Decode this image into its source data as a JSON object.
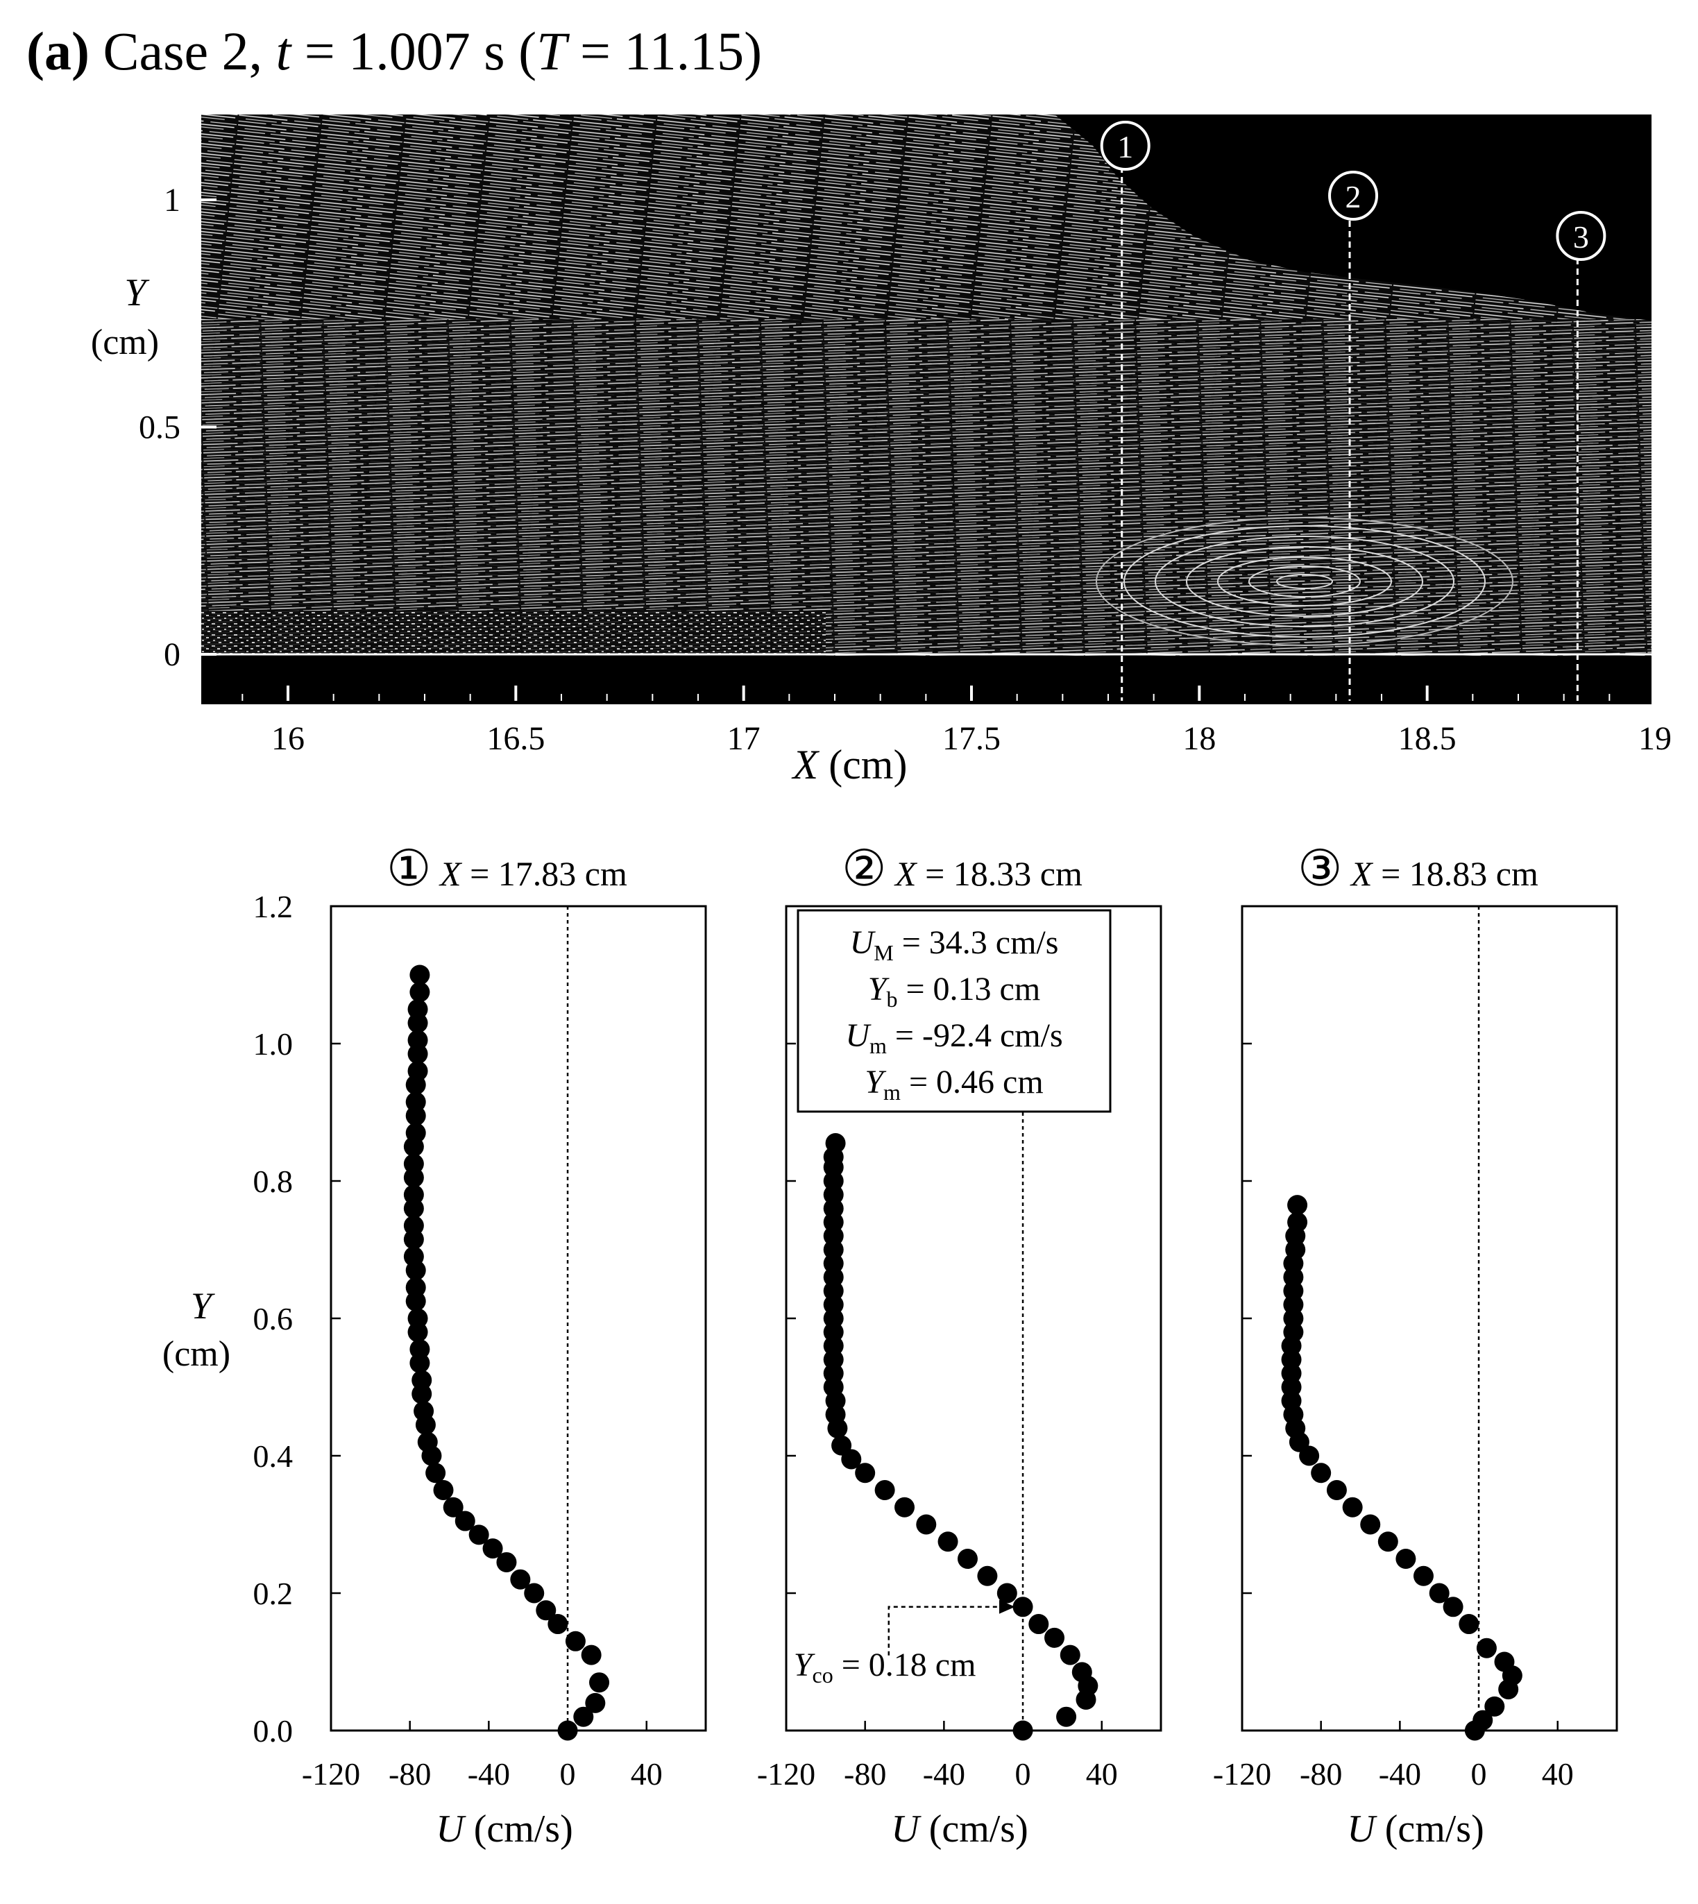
{
  "figure": {
    "label": "(a)",
    "case": "Case 2,",
    "time_var": "t",
    "time_value": " = 1.007 s (",
    "T_var": "T",
    "T_value": " = 11.15)"
  },
  "image_panel": {
    "ylabel_var": "Y",
    "ylabel_unit": "(cm)",
    "xlabel_var": "X",
    "xlabel_unit": " (cm)",
    "x_ticks": [
      "16",
      "16.5",
      "17",
      "17.5",
      "18",
      "18.5",
      "19"
    ],
    "y_ticks": [
      "1",
      "0.5",
      "0"
    ],
    "sections": [
      {
        "id": "1",
        "x": 17.83
      },
      {
        "id": "2",
        "x": 18.33
      },
      {
        "id": "3",
        "x": 18.83
      }
    ]
  },
  "chart_data": [
    {
      "type": "scatter",
      "marker": "①",
      "title_var": "X",
      "title_value": " = 17.83 cm",
      "xlabel_var": "U",
      "xlabel_unit": " (cm/s)",
      "ylabel_var": "Y",
      "ylabel_unit": "(cm)",
      "xlim": [
        -120,
        70
      ],
      "ylim": [
        0,
        1.2
      ],
      "x_ticks": [
        "-120",
        "-80",
        "-40",
        "0",
        "40"
      ],
      "y_ticks": [
        "0.0",
        "0.2",
        "0.4",
        "0.6",
        "0.8",
        "1.0",
        "1.2"
      ],
      "points": [
        [
          0,
          0
        ],
        [
          8,
          0.02
        ],
        [
          14,
          0.04
        ],
        [
          16,
          0.07
        ],
        [
          12,
          0.11
        ],
        [
          4,
          0.13
        ],
        [
          -5,
          0.155
        ],
        [
          -11,
          0.175
        ],
        [
          -17,
          0.2
        ],
        [
          -24,
          0.22
        ],
        [
          -31,
          0.245
        ],
        [
          -38,
          0.265
        ],
        [
          -45,
          0.285
        ],
        [
          -52,
          0.305
        ],
        [
          -58,
          0.325
        ],
        [
          -63,
          0.35
        ],
        [
          -67,
          0.375
        ],
        [
          -69,
          0.4
        ],
        [
          -71,
          0.42
        ],
        [
          -72,
          0.445
        ],
        [
          -73,
          0.465
        ],
        [
          -74,
          0.49
        ],
        [
          -74,
          0.51
        ],
        [
          -75,
          0.535
        ],
        [
          -75,
          0.555
        ],
        [
          -76,
          0.58
        ],
        [
          -76,
          0.6
        ],
        [
          -77,
          0.625
        ],
        [
          -77,
          0.645
        ],
        [
          -77,
          0.67
        ],
        [
          -78,
          0.69
        ],
        [
          -78,
          0.715
        ],
        [
          -78,
          0.735
        ],
        [
          -78,
          0.76
        ],
        [
          -78,
          0.78
        ],
        [
          -78,
          0.805
        ],
        [
          -78,
          0.825
        ],
        [
          -78,
          0.85
        ],
        [
          -77,
          0.87
        ],
        [
          -77,
          0.895
        ],
        [
          -77,
          0.915
        ],
        [
          -77,
          0.94
        ],
        [
          -76,
          0.96
        ],
        [
          -76,
          0.985
        ],
        [
          -76,
          1.005
        ],
        [
          -76,
          1.03
        ],
        [
          -76,
          1.05
        ],
        [
          -75,
          1.075
        ],
        [
          -75,
          1.1
        ]
      ]
    },
    {
      "type": "scatter",
      "marker": "②",
      "title_var": "X",
      "title_value": " = 18.33 cm",
      "xlabel_var": "U",
      "xlabel_unit": " (cm/s)",
      "xlim": [
        -120,
        70
      ],
      "ylim": [
        0,
        1.2
      ],
      "x_ticks": [
        "-120",
        "-80",
        "-40",
        "0",
        "40"
      ],
      "stats": {
        "UM_sub": "M",
        "UM_value": " = 34.3 cm/s",
        "Yb_sub": "b",
        "Yb_value": " = 0.13 cm",
        "Um_sub": "m",
        "Um_value": " = -92.4 cm/s",
        "Ym_sub": "m",
        "Ym_value": " = 0.46 cm"
      },
      "annotation": {
        "sub": "co",
        "value": " = 0.18 cm",
        "y": 0.18
      },
      "points": [
        [
          0,
          0
        ],
        [
          22,
          0.02
        ],
        [
          32,
          0.045
        ],
        [
          33,
          0.065
        ],
        [
          30,
          0.085
        ],
        [
          24,
          0.11
        ],
        [
          16,
          0.135
        ],
        [
          8,
          0.155
        ],
        [
          0,
          0.18
        ],
        [
          -8,
          0.2
        ],
        [
          -18,
          0.225
        ],
        [
          -28,
          0.25
        ],
        [
          -38,
          0.275
        ],
        [
          -49,
          0.3
        ],
        [
          -60,
          0.325
        ],
        [
          -70,
          0.35
        ],
        [
          -80,
          0.375
        ],
        [
          -87,
          0.395
        ],
        [
          -92,
          0.415
        ],
        [
          -94,
          0.44
        ],
        [
          -95,
          0.46
        ],
        [
          -95,
          0.48
        ],
        [
          -96,
          0.5
        ],
        [
          -96,
          0.52
        ],
        [
          -96,
          0.54
        ],
        [
          -96,
          0.56
        ],
        [
          -96,
          0.58
        ],
        [
          -96,
          0.6
        ],
        [
          -96,
          0.62
        ],
        [
          -96,
          0.64
        ],
        [
          -96,
          0.66
        ],
        [
          -96,
          0.68
        ],
        [
          -96,
          0.7
        ],
        [
          -96,
          0.72
        ],
        [
          -96,
          0.74
        ],
        [
          -96,
          0.76
        ],
        [
          -96,
          0.78
        ],
        [
          -96,
          0.8
        ],
        [
          -96,
          0.82
        ],
        [
          -96,
          0.835
        ],
        [
          -95,
          0.855
        ]
      ]
    },
    {
      "type": "scatter",
      "marker": "③",
      "title_var": "X",
      "title_value": " = 18.83 cm",
      "xlabel_var": "U",
      "xlabel_unit": " (cm/s)",
      "xlim": [
        -120,
        70
      ],
      "ylim": [
        0,
        1.2
      ],
      "x_ticks": [
        "-120",
        "-80",
        "-40",
        "0",
        "40"
      ],
      "points": [
        [
          -2,
          0
        ],
        [
          2,
          0.015
        ],
        [
          8,
          0.035
        ],
        [
          15,
          0.06
        ],
        [
          17,
          0.08
        ],
        [
          13,
          0.1
        ],
        [
          4,
          0.12
        ],
        [
          -5,
          0.155
        ],
        [
          -13,
          0.18
        ],
        [
          -20,
          0.2
        ],
        [
          -28,
          0.225
        ],
        [
          -37,
          0.25
        ],
        [
          -46,
          0.275
        ],
        [
          -55,
          0.3
        ],
        [
          -64,
          0.325
        ],
        [
          -72,
          0.35
        ],
        [
          -80,
          0.375
        ],
        [
          -86,
          0.4
        ],
        [
          -91,
          0.42
        ],
        [
          -93,
          0.44
        ],
        [
          -94,
          0.46
        ],
        [
          -95,
          0.48
        ],
        [
          -95,
          0.5
        ],
        [
          -95,
          0.52
        ],
        [
          -95,
          0.54
        ],
        [
          -95,
          0.56
        ],
        [
          -94,
          0.58
        ],
        [
          -94,
          0.6
        ],
        [
          -94,
          0.62
        ],
        [
          -94,
          0.64
        ],
        [
          -94,
          0.66
        ],
        [
          -94,
          0.68
        ],
        [
          -93,
          0.7
        ],
        [
          -93,
          0.72
        ],
        [
          -92,
          0.74
        ],
        [
          -92,
          0.765
        ]
      ]
    }
  ]
}
